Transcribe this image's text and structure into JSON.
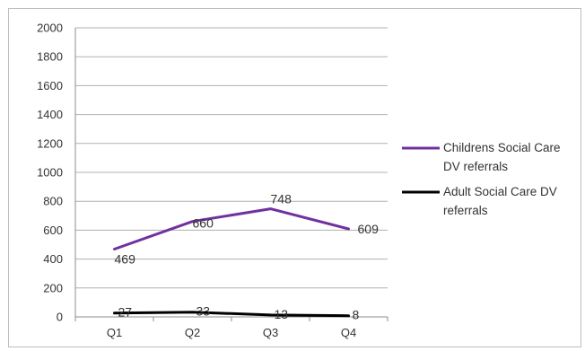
{
  "chart_data": {
    "type": "line",
    "categories": [
      "Q1",
      "Q2",
      "Q3",
      "Q4"
    ],
    "ylim": [
      0,
      2000
    ],
    "yticks": [
      0,
      200,
      400,
      600,
      800,
      1000,
      1200,
      1400,
      1600,
      1800,
      2000
    ],
    "grid": true,
    "legend_position": "right",
    "series": [
      {
        "name": "Childrens Social Care DV referrals",
        "name_lines": [
          "Childrens Social Care",
          "DV referrals"
        ],
        "values": [
          469,
          660,
          748,
          609
        ],
        "labels": [
          "469",
          "660",
          "748",
          "609"
        ],
        "color": "#7030a0"
      },
      {
        "name": "Adult Social Care DV referrals",
        "name_lines": [
          "Adult Social Care DV",
          "referrals"
        ],
        "values": [
          27,
          33,
          13,
          8
        ],
        "labels": [
          "27",
          "33",
          "13",
          "8"
        ],
        "color": "#000000"
      }
    ]
  }
}
